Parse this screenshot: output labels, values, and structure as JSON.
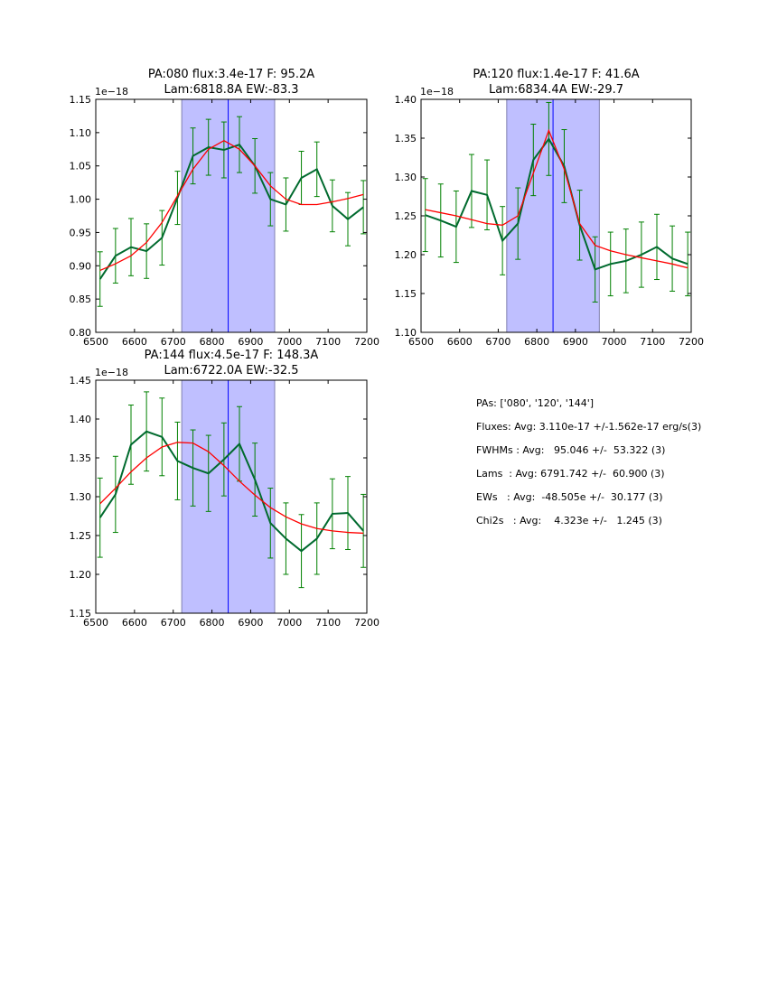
{
  "chart_data": [
    {
      "type": "line",
      "title_lines": [
        "PA:080 flux:3.4e-17 F: 95.2A",
        "Lam:6818.8A EW:-83.3"
      ],
      "offset_label": "1e−18",
      "xlim": [
        6500,
        7200
      ],
      "ylim": [
        0.8,
        1.15
      ],
      "xticks": [
        6500,
        6600,
        6700,
        6800,
        6900,
        7000,
        7100,
        7200
      ],
      "yticks": [
        0.8,
        0.85,
        0.9,
        0.95,
        1.0,
        1.05,
        1.1,
        1.15
      ],
      "shaded_region": [
        6722,
        6962
      ],
      "center_line": 6842,
      "x": [
        6511,
        6551,
        6591,
        6631,
        6671,
        6711,
        6751,
        6791,
        6831,
        6871,
        6911,
        6951,
        6991,
        7031,
        7071,
        7111,
        7151,
        7191
      ],
      "series": [
        {
          "name": "data",
          "color": "#006a2e",
          "values": [
            0.88,
            0.915,
            0.928,
            0.922,
            0.942,
            1.002,
            1.065,
            1.078,
            1.074,
            1.082,
            1.05,
            1.0,
            0.992,
            1.032,
            1.045,
            0.99,
            0.97,
            0.988
          ],
          "errors": [
            0.041,
            0.041,
            0.043,
            0.041,
            0.041,
            0.04,
            0.042,
            0.042,
            0.042,
            0.042,
            0.041,
            0.04,
            0.04,
            0.04,
            0.041,
            0.039,
            0.04,
            0.04
          ]
        },
        {
          "name": "fit",
          "color": "#ff0000",
          "values": [
            0.893,
            0.903,
            0.915,
            0.935,
            0.965,
            1.005,
            1.045,
            1.075,
            1.088,
            1.075,
            1.05,
            1.02,
            1.0,
            0.992,
            0.992,
            0.996,
            1.001,
            1.007
          ]
        }
      ]
    },
    {
      "type": "line",
      "title_lines": [
        "PA:120 flux:1.4e-17 F: 41.6A",
        "Lam:6834.4A EW:-29.7"
      ],
      "offset_label": "1e−18",
      "xlim": [
        6500,
        7200
      ],
      "ylim": [
        1.1,
        1.4
      ],
      "xticks": [
        6500,
        6600,
        6700,
        6800,
        6900,
        7000,
        7100,
        7200
      ],
      "yticks": [
        1.1,
        1.15,
        1.2,
        1.25,
        1.3,
        1.35,
        1.4
      ],
      "shaded_region": [
        6722,
        6962
      ],
      "center_line": 6842,
      "x": [
        6511,
        6551,
        6591,
        6631,
        6671,
        6711,
        6751,
        6791,
        6831,
        6871,
        6911,
        6951,
        6991,
        7031,
        7071,
        7111,
        7151,
        7191
      ],
      "series": [
        {
          "name": "data",
          "color": "#006a2e",
          "values": [
            1.251,
            1.244,
            1.236,
            1.282,
            1.277,
            1.218,
            1.24,
            1.322,
            1.349,
            1.314,
            1.238,
            1.181,
            1.188,
            1.192,
            1.2,
            1.21,
            1.195,
            1.188
          ],
          "errors": [
            0.047,
            0.047,
            0.046,
            0.047,
            0.045,
            0.044,
            0.046,
            0.046,
            0.047,
            0.047,
            0.045,
            0.042,
            0.041,
            0.041,
            0.042,
            0.042,
            0.042,
            0.041
          ]
        },
        {
          "name": "fit",
          "color": "#ff0000",
          "values": [
            1.258,
            1.254,
            1.25,
            1.245,
            1.24,
            1.238,
            1.25,
            1.305,
            1.36,
            1.31,
            1.24,
            1.212,
            1.205,
            1.2,
            1.196,
            1.192,
            1.188,
            1.183
          ]
        }
      ]
    },
    {
      "type": "line",
      "title_lines": [
        "PA:144 flux:4.5e-17 F: 148.3A",
        "Lam:6722.0A EW:-32.5"
      ],
      "offset_label": "1e−18",
      "xlim": [
        6500,
        7200
      ],
      "ylim": [
        1.15,
        1.45
      ],
      "xticks": [
        6500,
        6600,
        6700,
        6800,
        6900,
        7000,
        7100,
        7200
      ],
      "yticks": [
        1.15,
        1.2,
        1.25,
        1.3,
        1.35,
        1.4,
        1.45
      ],
      "shaded_region": [
        6722,
        6962
      ],
      "center_line": 6842,
      "x": [
        6511,
        6551,
        6591,
        6631,
        6671,
        6711,
        6751,
        6791,
        6831,
        6871,
        6911,
        6951,
        6991,
        7031,
        7071,
        7111,
        7151,
        7191
      ],
      "series": [
        {
          "name": "data",
          "color": "#006a2e",
          "values": [
            1.273,
            1.303,
            1.367,
            1.384,
            1.377,
            1.346,
            1.337,
            1.33,
            1.348,
            1.368,
            1.322,
            1.266,
            1.246,
            1.23,
            1.246,
            1.278,
            1.279,
            1.256
          ],
          "errors": [
            0.051,
            0.049,
            0.051,
            0.051,
            0.05,
            0.05,
            0.049,
            0.049,
            0.047,
            0.048,
            0.047,
            0.045,
            0.046,
            0.047,
            0.046,
            0.045,
            0.047,
            0.047
          ]
        },
        {
          "name": "fit",
          "color": "#ff0000",
          "values": [
            1.291,
            1.311,
            1.332,
            1.35,
            1.364,
            1.37,
            1.369,
            1.358,
            1.34,
            1.32,
            1.302,
            1.286,
            1.274,
            1.265,
            1.259,
            1.256,
            1.254,
            1.253
          ]
        }
      ]
    }
  ],
  "summary": {
    "pas": "PAs: ['080', '120', '144']",
    "fluxes": "Fluxes: Avg: 3.110e-17 +/-1.562e-17 erg/s(3)",
    "fwhms": "FWHMs : Avg:   95.046 +/-  53.322 (3)",
    "lams": "Lams  : Avg: 6791.742 +/-  60.900 (3)",
    "ews": "EWs   : Avg:  -48.505e +/-  30.177 (3)",
    "chi2s": "Chi2s   : Avg:    4.323e +/-   1.245 (3)"
  },
  "colors": {
    "shade": "#bfbfff",
    "center_line": "#0000ff",
    "data": "#006a2e",
    "errorbar": "#008000",
    "fit": "#ff0000"
  }
}
